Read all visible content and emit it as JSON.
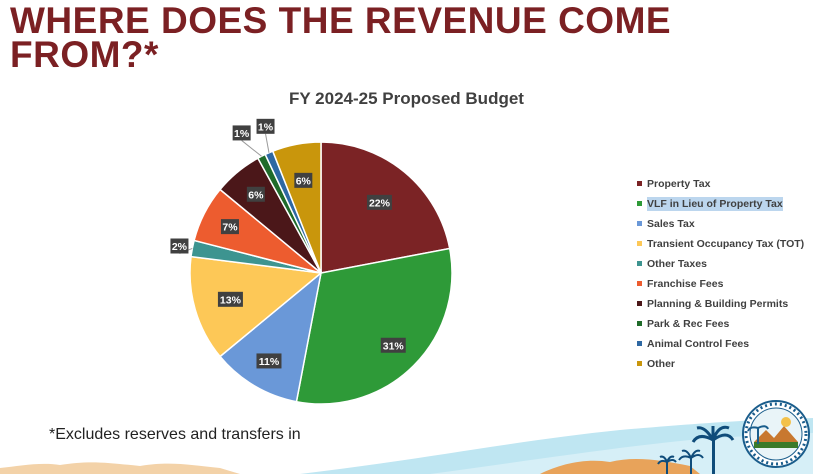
{
  "slide_title": "WHERE DOES THE REVENUE COME FROM?*",
  "footnote": "*Excludes reserves and transfers in",
  "chart_data": {
    "type": "pie",
    "title": "FY 2024-25 Proposed Budget",
    "slices": [
      {
        "name": "Property Tax",
        "value": 22,
        "label": "22%",
        "color": "#7b2325"
      },
      {
        "name": "VLF in Lieu of Property Tax",
        "value": 31,
        "label": "31%",
        "color": "#2e9a38"
      },
      {
        "name": "Sales Tax",
        "value": 11,
        "label": "11%",
        "color": "#6a98d8"
      },
      {
        "name": "Transient Occupancy Tax (TOT)",
        "value": 13,
        "label": "13%",
        "color": "#fdc857"
      },
      {
        "name": "Other Taxes",
        "value": 2,
        "label": "2%",
        "color": "#3d9490"
      },
      {
        "name": "Franchise Fees",
        "value": 7,
        "label": "7%",
        "color": "#ed5c2f"
      },
      {
        "name": "Planning & Building Permits",
        "value": 6,
        "label": "6%",
        "color": "#4b1719"
      },
      {
        "name": "Park & Rec Fees",
        "value": 1,
        "label": "1%",
        "color": "#1f6b2a"
      },
      {
        "name": "Animal Control Fees",
        "value": 1,
        "label": "1%",
        "color": "#2e68a3"
      },
      {
        "name": "Other",
        "value": 6,
        "label": "6%",
        "color": "#c9960c"
      }
    ],
    "start_angle_deg": 0,
    "direction": "clockwise",
    "legend_position": "right"
  },
  "legend_highlight": [
    1
  ],
  "colors": {
    "title": "#7b2023",
    "label_box": "#404040",
    "label_text": "#ffffff",
    "seal_blue": "#1a5d8c"
  },
  "icons": [
    "city-seal-logo",
    "palm-tree-decoration",
    "mountain-landscape-decoration"
  ]
}
